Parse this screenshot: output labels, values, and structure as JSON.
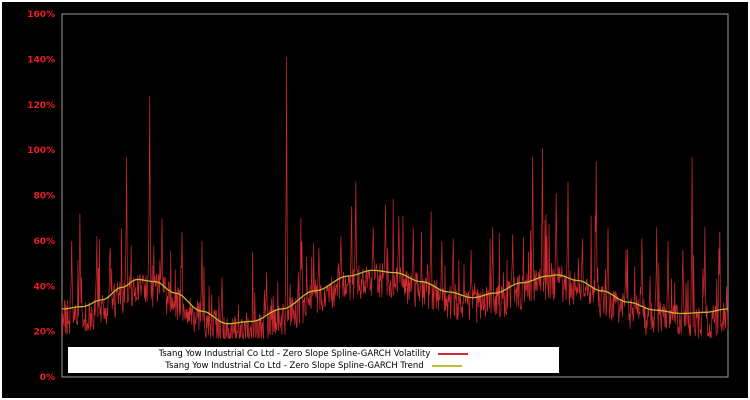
{
  "window": {
    "background": "#000000",
    "border_color": "#ffffff"
  },
  "chart_data": {
    "type": "line",
    "title": "",
    "xlabel": "",
    "ylabel": "",
    "ylim": [
      0,
      160
    ],
    "ytick_values": [
      0,
      20,
      40,
      60,
      80,
      100,
      120,
      140,
      160
    ],
    "ytick_labels": [
      "0%",
      "20%",
      "40%",
      "60%",
      "80%",
      "100%",
      "120%",
      "140%",
      "160%"
    ],
    "xtick_labels": [],
    "grid": false,
    "frame_color": "#9b9b9b",
    "tick_label_color": "#ee1c25",
    "legend": {
      "position": "bottom-center",
      "background": "#ffffff",
      "text_color": "#000000"
    },
    "series": [
      {
        "name": "Tsang Yow Industrial Co Ltd - Zero Slope Spline-GARCH Volatility",
        "color": "#d22b2f",
        "style": "noisy-line",
        "model": {
          "seed": 987654321,
          "points": 1300,
          "band": 16,
          "center_offset": -4,
          "spike_prob": 0.13,
          "spike_scale": 30,
          "min": 17,
          "spikes": [
            [
              0.015,
              60
            ],
            [
              0.027,
              72
            ],
            [
              0.052,
              62
            ],
            [
              0.072,
              57
            ],
            [
              0.097,
              97
            ],
            [
              0.132,
              124
            ],
            [
              0.15,
              70
            ],
            [
              0.18,
              64
            ],
            [
              0.21,
              60
            ],
            [
              0.24,
              44
            ],
            [
              0.307,
              46
            ],
            [
              0.337,
              141
            ],
            [
              0.359,
              70
            ],
            [
              0.386,
              57
            ],
            [
              0.419,
              62
            ],
            [
              0.441,
              86
            ],
            [
              0.467,
              66
            ],
            [
              0.486,
              76
            ],
            [
              0.506,
              71
            ],
            [
              0.527,
              66
            ],
            [
              0.554,
              73
            ],
            [
              0.587,
              61
            ],
            [
              0.614,
              56
            ],
            [
              0.647,
              66
            ],
            [
              0.677,
              63
            ],
            [
              0.707,
              97
            ],
            [
              0.721,
              101
            ],
            [
              0.742,
              81
            ],
            [
              0.76,
              86
            ],
            [
              0.781,
              61
            ],
            [
              0.802,
              95
            ],
            [
              0.82,
              66
            ],
            [
              0.847,
              56
            ],
            [
              0.871,
              61
            ],
            [
              0.893,
              66
            ],
            [
              0.91,
              60
            ],
            [
              0.932,
              56
            ],
            [
              0.946,
              97
            ],
            [
              0.965,
              66
            ],
            [
              0.988,
              64
            ]
          ]
        }
      },
      {
        "name": "Tsang Yow Industrial Co Ltd - Zero Slope Spline-GARCH Trend",
        "color": "#b9bd2f",
        "style": "smooth-spline",
        "knots": [
          [
            0.0,
            30
          ],
          [
            0.03,
            31
          ],
          [
            0.06,
            34
          ],
          [
            0.09,
            39.5
          ],
          [
            0.113,
            43
          ],
          [
            0.14,
            42
          ],
          [
            0.17,
            37
          ],
          [
            0.21,
            29
          ],
          [
            0.248,
            23.5
          ],
          [
            0.285,
            24.5
          ],
          [
            0.33,
            30
          ],
          [
            0.38,
            38
          ],
          [
            0.43,
            44.5
          ],
          [
            0.466,
            47
          ],
          [
            0.5,
            46
          ],
          [
            0.54,
            42
          ],
          [
            0.58,
            37.5
          ],
          [
            0.617,
            35
          ],
          [
            0.65,
            37
          ],
          [
            0.69,
            41.5
          ],
          [
            0.73,
            44.5
          ],
          [
            0.744,
            45
          ],
          [
            0.775,
            42.5
          ],
          [
            0.81,
            38
          ],
          [
            0.85,
            33
          ],
          [
            0.89,
            29.5
          ],
          [
            0.93,
            28
          ],
          [
            0.965,
            28.5
          ],
          [
            1.0,
            30
          ]
        ]
      }
    ]
  }
}
